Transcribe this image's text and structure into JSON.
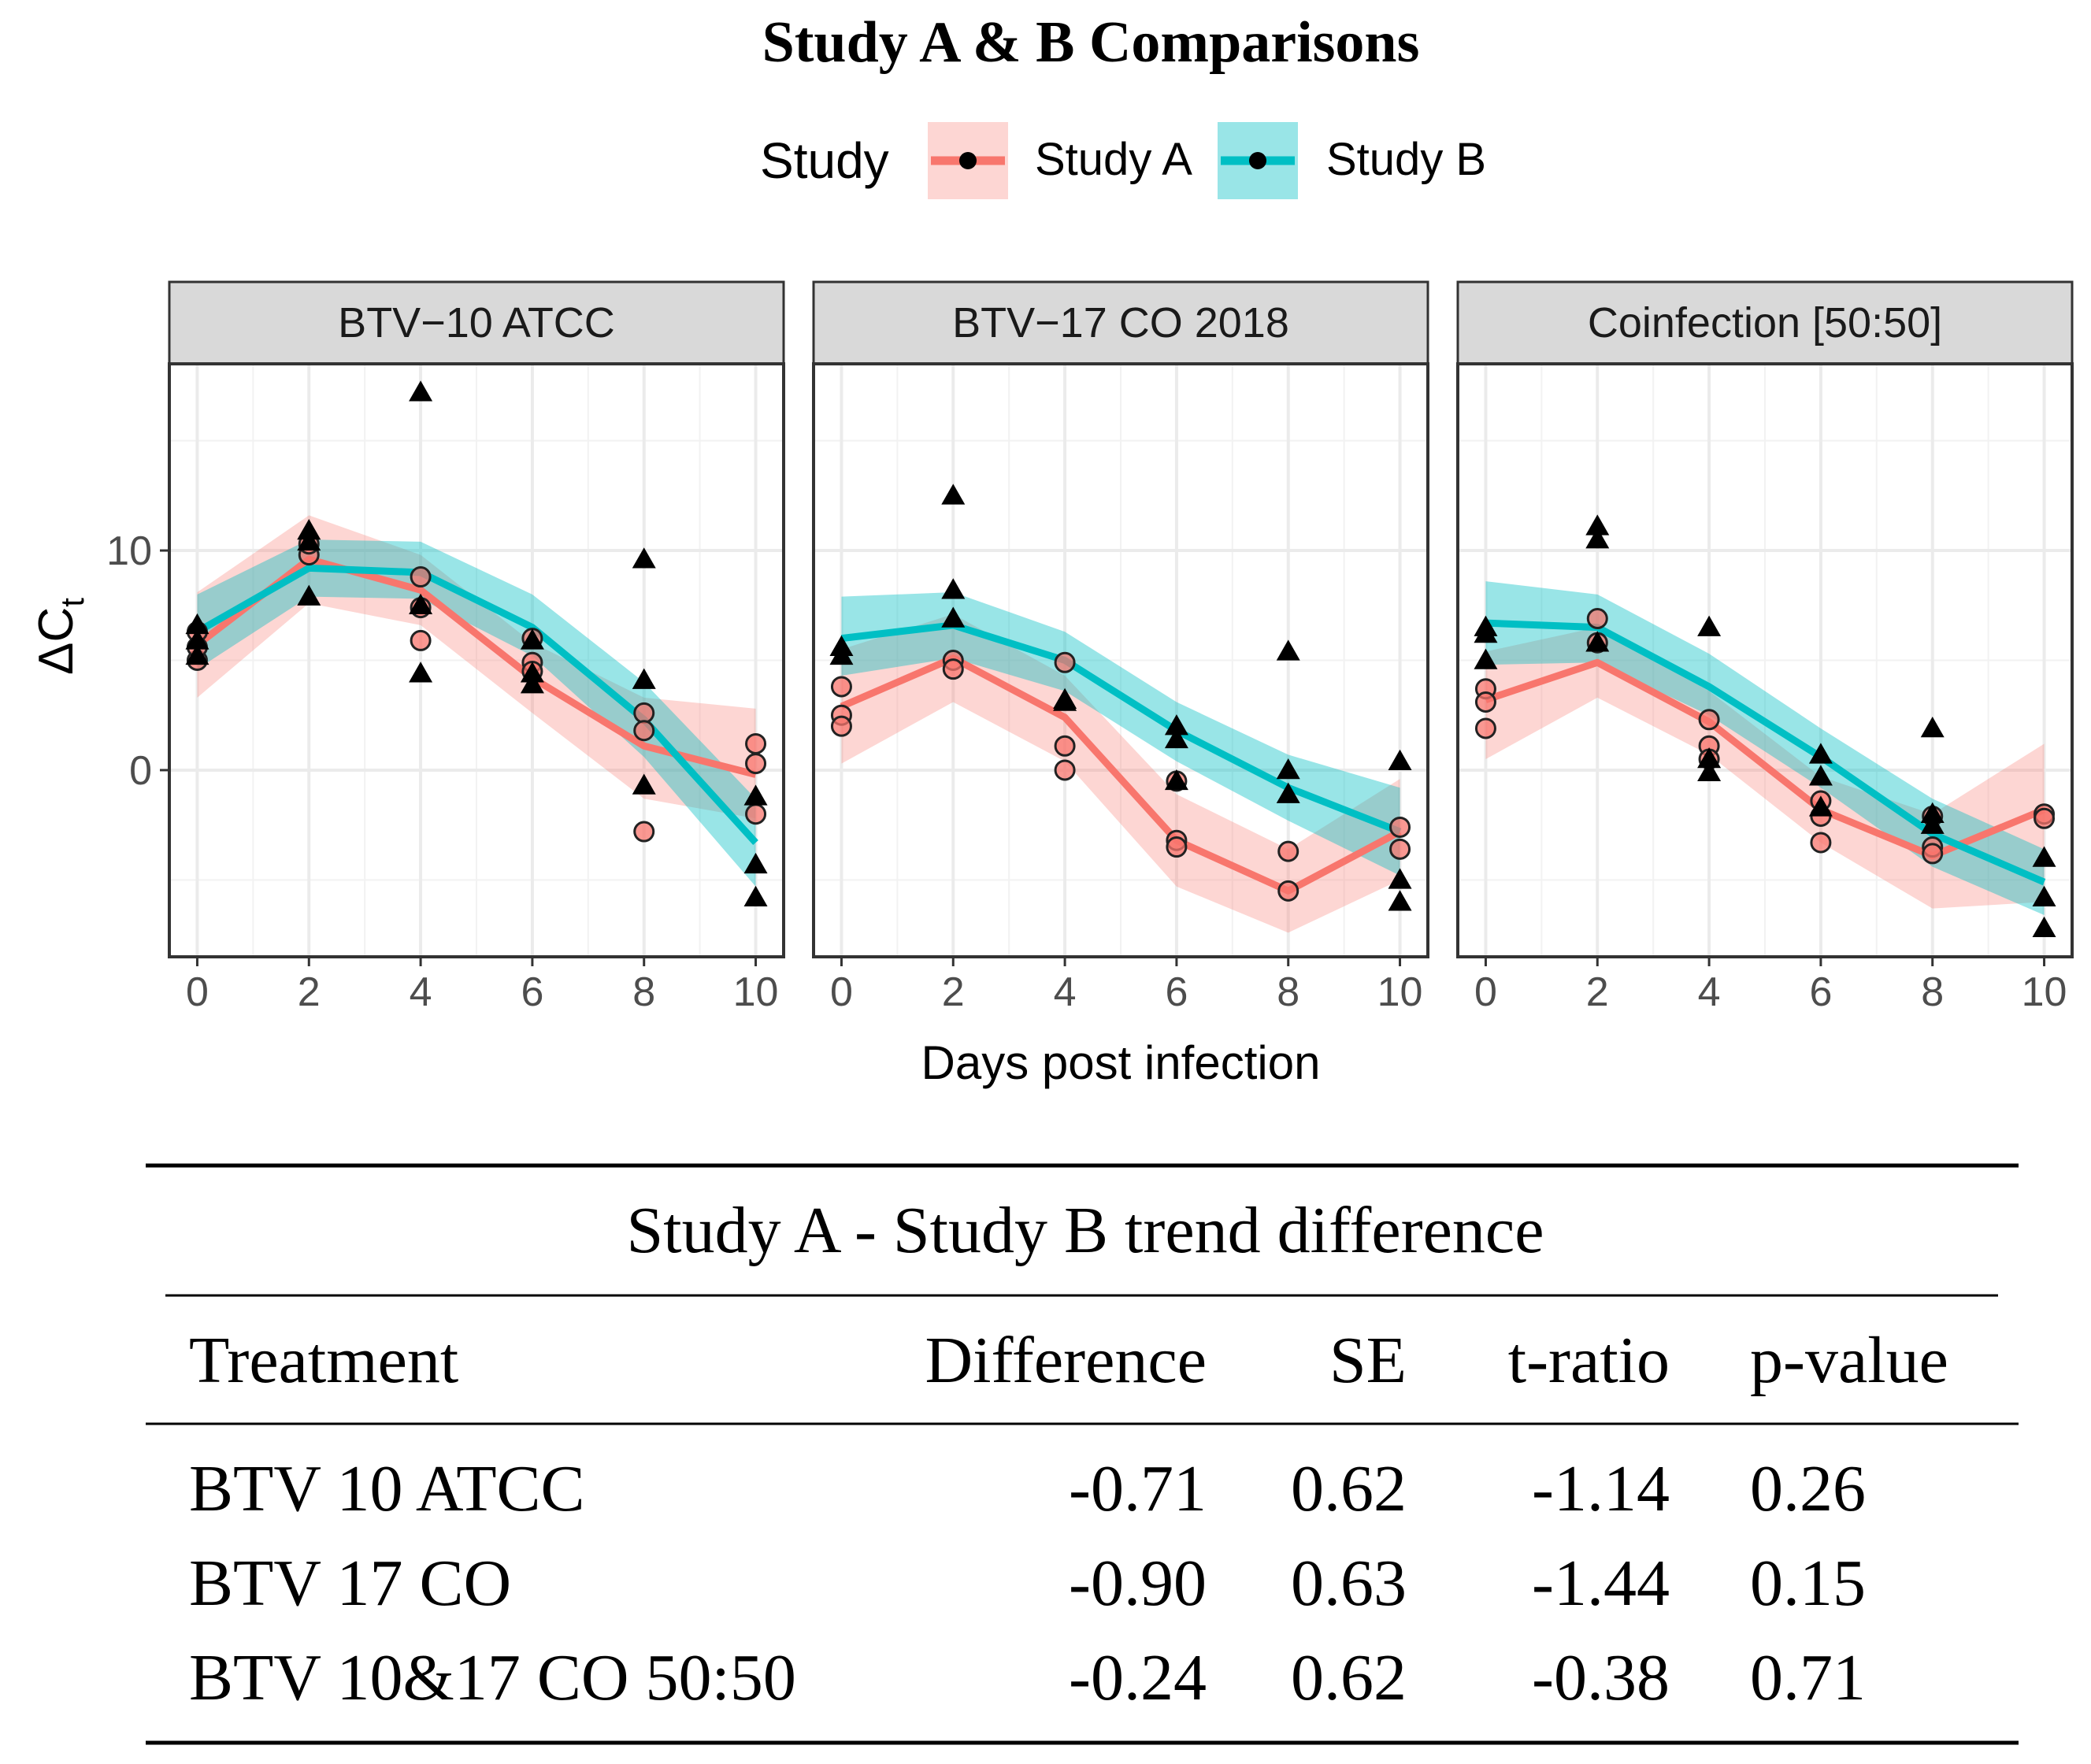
{
  "title": "Study A & B Comparisons",
  "legend": {
    "title": "Study",
    "entries": [
      {
        "label": "Study A",
        "color": "#F8766D"
      },
      {
        "label": "Study B",
        "color": "#00BFC4"
      }
    ]
  },
  "colors": {
    "study_a": "#F8766D",
    "study_b": "#00BFC4",
    "strip_bg": "#D9D9D9",
    "grid": "#EBEBEB"
  },
  "chart_data": {
    "type": "line",
    "xlabel": "Days post infection",
    "ylabel": "ΔC",
    "ylabel_sub": "t",
    "xlim": [
      -0.5,
      10.5
    ],
    "ylim": [
      -8.5,
      18.5
    ],
    "x_ticks": [
      0,
      2,
      4,
      6,
      8,
      10
    ],
    "y_ticks": [
      0,
      10
    ],
    "x": [
      0,
      2,
      4,
      6,
      8,
      10
    ],
    "panels": [
      {
        "title": "BTV−10 ATCC",
        "series": [
          {
            "name": "Study A",
            "values": [
              5.7,
              9.6,
              8.2,
              4.2,
              1.1,
              -0.2
            ],
            "lower": [
              3.3,
              7.6,
              6.6,
              2.6,
              -1.3,
              -2.2
            ],
            "upper": [
              8.1,
              11.6,
              9.8,
              5.8,
              3.3,
              2.8
            ]
          },
          {
            "name": "Study B",
            "values": [
              6.3,
              9.2,
              9.0,
              6.5,
              2.3,
              -3.3
            ],
            "lower": [
              4.6,
              7.9,
              7.8,
              5.2,
              0.6,
              -5.3
            ],
            "upper": [
              8.0,
              10.5,
              10.4,
              8.0,
              4.0,
              -1.3
            ]
          }
        ],
        "points_a": [
          [
            0,
            5.0
          ],
          [
            0,
            5.6
          ],
          [
            0,
            6.3
          ],
          [
            2,
            9.8
          ],
          [
            2,
            10.3
          ],
          [
            4,
            8.8
          ],
          [
            4,
            7.4
          ],
          [
            4,
            5.9
          ],
          [
            6,
            6.0
          ],
          [
            6,
            4.9
          ],
          [
            6,
            4.5
          ],
          [
            8,
            2.6
          ],
          [
            8,
            1.8
          ],
          [
            8,
            -2.8
          ],
          [
            10,
            1.2
          ],
          [
            10,
            0.3
          ],
          [
            10,
            -2.0
          ]
        ],
        "points_b": [
          [
            0,
            5.2
          ],
          [
            0,
            5.9
          ],
          [
            0,
            6.6
          ],
          [
            2,
            7.9
          ],
          [
            2,
            10.4
          ],
          [
            2,
            10.9
          ],
          [
            4,
            17.2
          ],
          [
            4,
            4.4
          ],
          [
            4,
            7.5
          ],
          [
            6,
            5.9
          ],
          [
            6,
            4.4
          ],
          [
            6,
            3.9
          ],
          [
            8,
            9.6
          ],
          [
            8,
            4.1
          ],
          [
            8,
            -0.7
          ],
          [
            10,
            -1.2
          ],
          [
            10,
            -4.3
          ],
          [
            10,
            -5.8
          ]
        ]
      },
      {
        "title": "BTV−17 CO 2018",
        "series": [
          {
            "name": "Study A",
            "values": [
              2.9,
              5.1,
              2.4,
              -3.2,
              -5.5,
              -2.8
            ],
            "lower": [
              0.3,
              3.1,
              0.4,
              -5.3,
              -7.4,
              -5.0
            ],
            "upper": [
              5.5,
              7.1,
              4.3,
              -1.1,
              -3.6,
              -0.4
            ]
          },
          {
            "name": "Study B",
            "values": [
              6.0,
              6.6,
              5.0,
              1.8,
              -0.8,
              -2.8
            ],
            "lower": [
              4.3,
              5.1,
              3.6,
              0.4,
              -2.3,
              -4.8
            ],
            "upper": [
              7.9,
              8.1,
              6.3,
              3.1,
              0.7,
              -0.8
            ]
          }
        ],
        "points_a": [
          [
            0,
            3.8
          ],
          [
            0,
            2.5
          ],
          [
            0,
            2.0
          ],
          [
            2,
            5.0
          ],
          [
            2,
            4.6
          ],
          [
            4,
            4.9
          ],
          [
            4,
            1.1
          ],
          [
            4,
            0.0
          ],
          [
            6,
            -0.5
          ],
          [
            6,
            -3.2
          ],
          [
            6,
            -3.5
          ],
          [
            8,
            -3.7
          ],
          [
            8,
            -5.5
          ],
          [
            10,
            -2.6
          ],
          [
            10,
            -3.6
          ]
        ],
        "points_b": [
          [
            0,
            5.2
          ],
          [
            0,
            5.6
          ],
          [
            2,
            12.5
          ],
          [
            2,
            8.2
          ],
          [
            2,
            6.9
          ],
          [
            4,
            3.1
          ],
          [
            4,
            3.2
          ],
          [
            6,
            2.0
          ],
          [
            6,
            1.4
          ],
          [
            6,
            -0.5
          ],
          [
            8,
            5.4
          ],
          [
            8,
            0.0
          ],
          [
            8,
            -1.1
          ],
          [
            10,
            0.4
          ],
          [
            10,
            -5.0
          ],
          [
            10,
            -6.0
          ]
        ]
      },
      {
        "title": "Coinfection [50:50]",
        "series": [
          {
            "name": "Study A",
            "values": [
              3.2,
              4.9,
              2.2,
              -1.8,
              -3.9,
              -1.8
            ],
            "lower": [
              0.5,
              3.3,
              0.7,
              -3.3,
              -6.3,
              -6.0
            ],
            "upper": [
              5.4,
              6.5,
              3.6,
              -0.3,
              -2.0,
              1.2
            ]
          },
          {
            "name": "Study B",
            "values": [
              6.7,
              6.5,
              3.8,
              0.6,
              -2.9,
              -5.1
            ],
            "lower": [
              4.8,
              4.9,
              2.5,
              -0.8,
              -4.4,
              -6.6
            ],
            "upper": [
              8.6,
              8.0,
              5.3,
              1.9,
              -1.3,
              -3.6
            ]
          }
        ],
        "points_a": [
          [
            0,
            3.7
          ],
          [
            0,
            3.1
          ],
          [
            0,
            1.9
          ],
          [
            2,
            6.9
          ],
          [
            2,
            5.8
          ],
          [
            4,
            2.3
          ],
          [
            4,
            1.1
          ],
          [
            4,
            0.5
          ],
          [
            6,
            -1.4
          ],
          [
            6,
            -2.1
          ],
          [
            6,
            -3.3
          ],
          [
            8,
            -2.1
          ],
          [
            8,
            -3.5
          ],
          [
            8,
            -3.8
          ],
          [
            10,
            -2.0
          ],
          [
            10,
            -2.2
          ]
        ],
        "points_b": [
          [
            0,
            6.5
          ],
          [
            0,
            6.2
          ],
          [
            0,
            5.0
          ],
          [
            2,
            11.1
          ],
          [
            2,
            10.5
          ],
          [
            2,
            5.8
          ],
          [
            4,
            6.5
          ],
          [
            4,
            0.5
          ],
          [
            4,
            -0.1
          ],
          [
            6,
            0.7
          ],
          [
            6,
            -0.3
          ],
          [
            6,
            -1.7
          ],
          [
            8,
            1.9
          ],
          [
            8,
            -2.0
          ],
          [
            8,
            -2.5
          ],
          [
            10,
            -4.0
          ],
          [
            10,
            -5.8
          ],
          [
            10,
            -7.2
          ]
        ]
      }
    ]
  },
  "table": {
    "caption": "Study A - Study B trend difference",
    "headers": [
      "Treatment",
      "Difference",
      "SE",
      "t-ratio",
      "p-value"
    ],
    "rows": [
      [
        "BTV 10 ATCC",
        "-0.71",
        "0.62",
        "-1.14",
        "0.26"
      ],
      [
        "BTV 17 CO",
        "-0.90",
        "0.63",
        "-1.44",
        "0.15"
      ],
      [
        "BTV 10&17 CO 50:50",
        "-0.24",
        "0.62",
        "-0.38",
        "0.71"
      ]
    ]
  }
}
